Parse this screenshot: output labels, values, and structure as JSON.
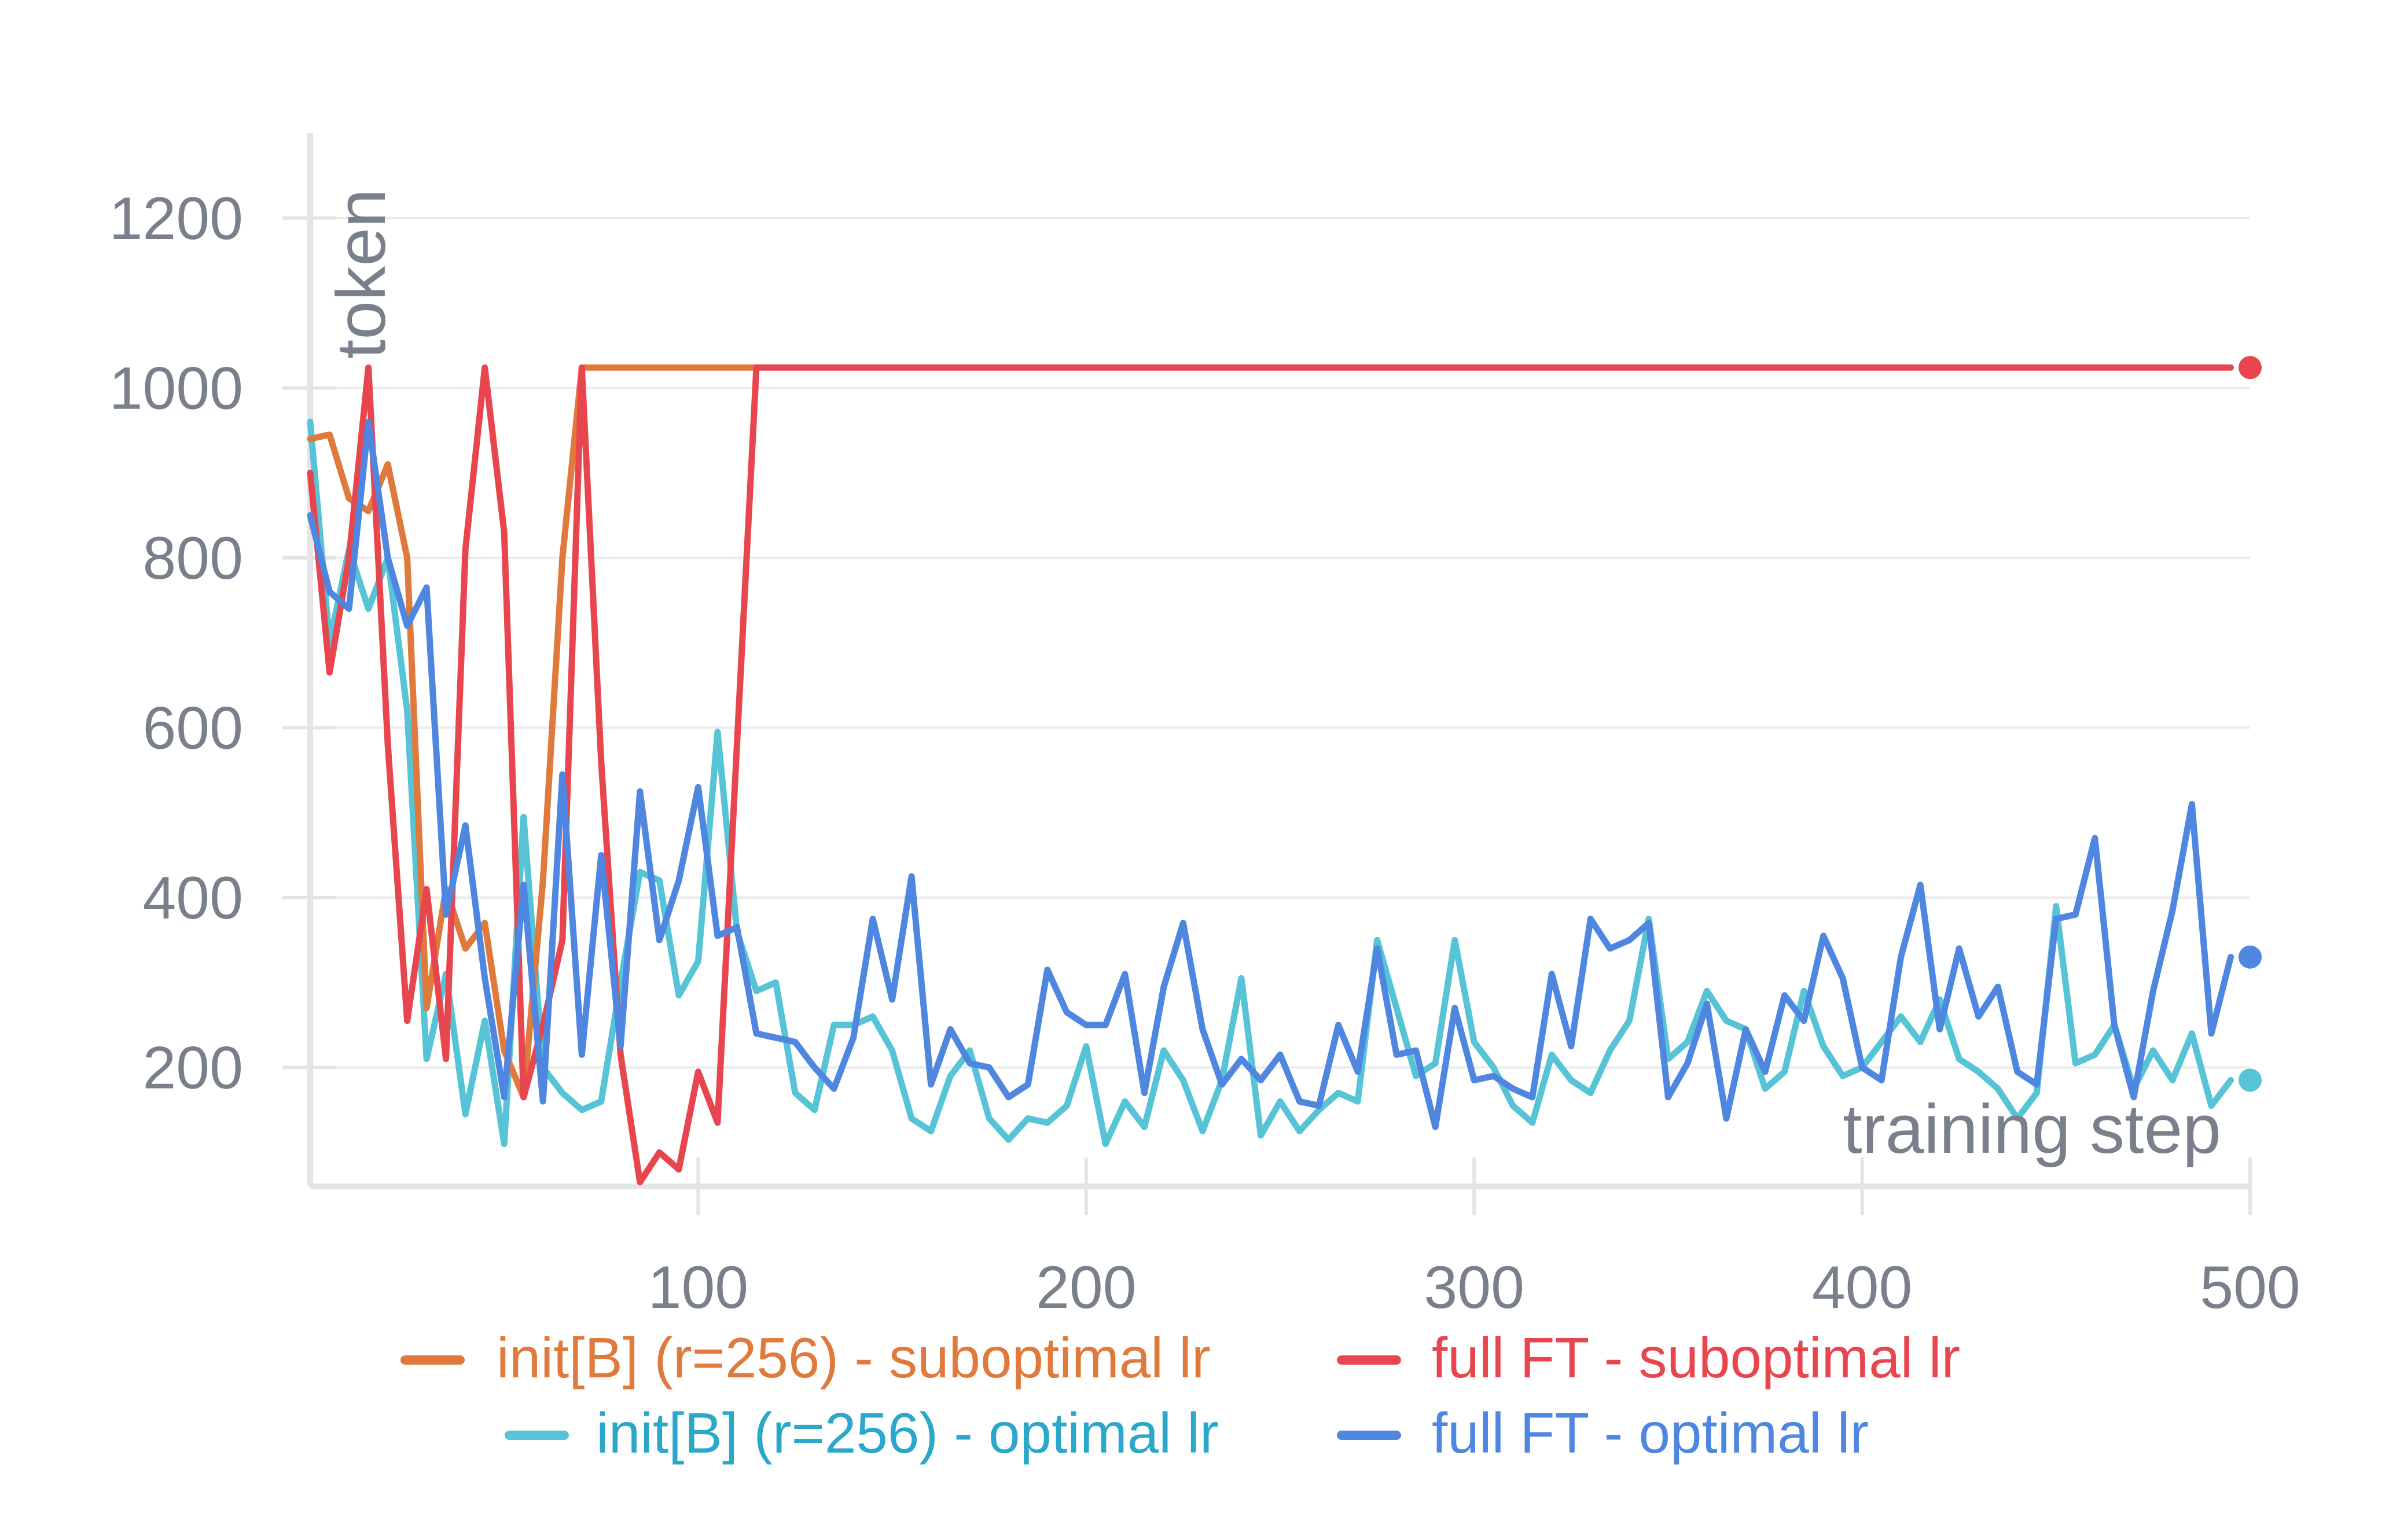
{
  "chart_data": {
    "type": "line",
    "title": "",
    "xlabel": "training step",
    "ylabel": "token",
    "xlim": [
      0,
      500
    ],
    "ylim": [
      60,
      1300
    ],
    "x_ticks": [
      100,
      200,
      300,
      400,
      500
    ],
    "y_ticks": [
      200,
      400,
      600,
      800,
      1000,
      1200
    ],
    "grid": true,
    "legend_position": "bottom",
    "series": [
      {
        "name": "init[B] (r=256) - optimal lr",
        "color": "#56c3d6",
        "values": [
          [
            0,
            960
          ],
          [
            5,
            700
          ],
          [
            10,
            810
          ],
          [
            15,
            740
          ],
          [
            20,
            800
          ],
          [
            25,
            620
          ],
          [
            30,
            210
          ],
          [
            35,
            310
          ],
          [
            40,
            145
          ],
          [
            45,
            255
          ],
          [
            50,
            110
          ],
          [
            55,
            495
          ],
          [
            60,
            200
          ],
          [
            65,
            170
          ],
          [
            70,
            150
          ],
          [
            75,
            160
          ],
          [
            80,
            300
          ],
          [
            85,
            430
          ],
          [
            90,
            420
          ],
          [
            95,
            285
          ],
          [
            100,
            325
          ],
          [
            105,
            595
          ],
          [
            110,
            360
          ],
          [
            115,
            290
          ],
          [
            120,
            300
          ],
          [
            125,
            170
          ],
          [
            130,
            150
          ],
          [
            135,
            250
          ],
          [
            140,
            250
          ],
          [
            145,
            260
          ],
          [
            150,
            220
          ],
          [
            155,
            140
          ],
          [
            160,
            125
          ],
          [
            165,
            190
          ],
          [
            170,
            220
          ],
          [
            175,
            140
          ],
          [
            180,
            115
          ],
          [
            185,
            140
          ],
          [
            190,
            135
          ],
          [
            195,
            155
          ],
          [
            200,
            225
          ],
          [
            205,
            110
          ],
          [
            210,
            160
          ],
          [
            215,
            130
          ],
          [
            220,
            220
          ],
          [
            225,
            185
          ],
          [
            230,
            125
          ],
          [
            235,
            185
          ],
          [
            240,
            305
          ],
          [
            245,
            120
          ],
          [
            250,
            160
          ],
          [
            255,
            125
          ],
          [
            260,
            150
          ],
          [
            265,
            170
          ],
          [
            270,
            160
          ],
          [
            275,
            350
          ],
          [
            280,
            270
          ],
          [
            285,
            190
          ],
          [
            290,
            205
          ],
          [
            295,
            350
          ],
          [
            300,
            230
          ],
          [
            305,
            200
          ],
          [
            310,
            155
          ],
          [
            315,
            135
          ],
          [
            320,
            215
          ],
          [
            325,
            185
          ],
          [
            330,
            170
          ],
          [
            335,
            220
          ],
          [
            340,
            255
          ],
          [
            345,
            375
          ],
          [
            350,
            210
          ],
          [
            355,
            230
          ],
          [
            360,
            290
          ],
          [
            365,
            255
          ],
          [
            370,
            245
          ],
          [
            375,
            175
          ],
          [
            380,
            195
          ],
          [
            385,
            290
          ],
          [
            390,
            225
          ],
          [
            395,
            190
          ],
          [
            400,
            200
          ],
          [
            405,
            230
          ],
          [
            410,
            260
          ],
          [
            415,
            230
          ],
          [
            420,
            280
          ],
          [
            425,
            210
          ],
          [
            430,
            195
          ],
          [
            435,
            175
          ],
          [
            440,
            140
          ],
          [
            445,
            170
          ],
          [
            450,
            390
          ],
          [
            455,
            205
          ],
          [
            460,
            215
          ],
          [
            465,
            250
          ],
          [
            470,
            175
          ],
          [
            475,
            220
          ],
          [
            480,
            185
          ],
          [
            485,
            240
          ],
          [
            490,
            155
          ],
          [
            495,
            185
          ]
        ]
      },
      {
        "name": "init[B] (r=256) - suboptimal lr",
        "color": "#e07a3c",
        "values": [
          [
            0,
            940
          ],
          [
            5,
            945
          ],
          [
            10,
            870
          ],
          [
            15,
            855
          ],
          [
            20,
            910
          ],
          [
            25,
            800
          ],
          [
            30,
            270
          ],
          [
            35,
            410
          ],
          [
            40,
            340
          ],
          [
            45,
            370
          ],
          [
            50,
            220
          ],
          [
            55,
            165
          ],
          [
            60,
            420
          ],
          [
            65,
            800
          ],
          [
            70,
            1024
          ],
          [
            75,
            1024
          ],
          [
            80,
            1024
          ],
          [
            90,
            1024
          ],
          [
            100,
            1024
          ],
          [
            110,
            1024
          ],
          [
            115,
            1024
          ]
        ]
      },
      {
        "name": "full FT - suboptimal lr",
        "color": "#e8464f",
        "values": [
          [
            0,
            900
          ],
          [
            5,
            665
          ],
          [
            10,
            800
          ],
          [
            15,
            1024
          ],
          [
            20,
            580
          ],
          [
            25,
            255
          ],
          [
            30,
            410
          ],
          [
            35,
            210
          ],
          [
            40,
            810
          ],
          [
            45,
            1024
          ],
          [
            50,
            830
          ],
          [
            55,
            165
          ],
          [
            60,
            250
          ],
          [
            65,
            350
          ],
          [
            70,
            1024
          ],
          [
            75,
            560
          ],
          [
            80,
            215
          ],
          [
            85,
            65
          ],
          [
            90,
            100
          ],
          [
            95,
            80
          ],
          [
            100,
            195
          ],
          [
            105,
            135
          ],
          [
            110,
            580
          ],
          [
            115,
            1024
          ],
          [
            120,
            1024
          ],
          [
            200,
            1024
          ],
          [
            300,
            1024
          ],
          [
            400,
            1024
          ],
          [
            495,
            1024
          ]
        ]
      },
      {
        "name": "full FT - optimal lr",
        "color": "#4f86e0",
        "values": [
          [
            0,
            850
          ],
          [
            5,
            760
          ],
          [
            10,
            740
          ],
          [
            15,
            960
          ],
          [
            20,
            800
          ],
          [
            25,
            720
          ],
          [
            30,
            765
          ],
          [
            35,
            380
          ],
          [
            40,
            485
          ],
          [
            45,
            305
          ],
          [
            50,
            165
          ],
          [
            55,
            415
          ],
          [
            60,
            160
          ],
          [
            65,
            545
          ],
          [
            70,
            215
          ],
          [
            75,
            450
          ],
          [
            80,
            225
          ],
          [
            85,
            525
          ],
          [
            90,
            350
          ],
          [
            95,
            420
          ],
          [
            100,
            530
          ],
          [
            105,
            355
          ],
          [
            110,
            365
          ],
          [
            115,
            240
          ],
          [
            120,
            235
          ],
          [
            125,
            230
          ],
          [
            130,
            200
          ],
          [
            135,
            175
          ],
          [
            140,
            235
          ],
          [
            145,
            375
          ],
          [
            150,
            280
          ],
          [
            155,
            425
          ],
          [
            160,
            180
          ],
          [
            165,
            245
          ],
          [
            170,
            205
          ],
          [
            175,
            200
          ],
          [
            180,
            165
          ],
          [
            185,
            180
          ],
          [
            190,
            315
          ],
          [
            195,
            265
          ],
          [
            200,
            250
          ],
          [
            205,
            250
          ],
          [
            210,
            310
          ],
          [
            215,
            170
          ],
          [
            220,
            295
          ],
          [
            225,
            370
          ],
          [
            230,
            245
          ],
          [
            235,
            180
          ],
          [
            240,
            210
          ],
          [
            245,
            185
          ],
          [
            250,
            215
          ],
          [
            255,
            160
          ],
          [
            260,
            155
          ],
          [
            265,
            250
          ],
          [
            270,
            195
          ],
          [
            275,
            340
          ],
          [
            280,
            215
          ],
          [
            285,
            220
          ],
          [
            290,
            130
          ],
          [
            295,
            270
          ],
          [
            300,
            185
          ],
          [
            305,
            190
          ],
          [
            310,
            175
          ],
          [
            315,
            165
          ],
          [
            320,
            310
          ],
          [
            325,
            225
          ],
          [
            330,
            375
          ],
          [
            335,
            340
          ],
          [
            340,
            350
          ],
          [
            345,
            370
          ],
          [
            350,
            165
          ],
          [
            355,
            205
          ],
          [
            360,
            275
          ],
          [
            365,
            140
          ],
          [
            370,
            245
          ],
          [
            375,
            195
          ],
          [
            380,
            285
          ],
          [
            385,
            255
          ],
          [
            390,
            355
          ],
          [
            395,
            305
          ],
          [
            400,
            200
          ],
          [
            405,
            185
          ],
          [
            410,
            330
          ],
          [
            415,
            415
          ],
          [
            420,
            245
          ],
          [
            425,
            340
          ],
          [
            430,
            260
          ],
          [
            435,
            295
          ],
          [
            440,
            195
          ],
          [
            445,
            180
          ],
          [
            450,
            375
          ],
          [
            455,
            380
          ],
          [
            460,
            470
          ],
          [
            465,
            250
          ],
          [
            470,
            165
          ],
          [
            475,
            290
          ],
          [
            480,
            385
          ],
          [
            485,
            510
          ],
          [
            490,
            240
          ],
          [
            495,
            330
          ]
        ]
      }
    ]
  },
  "legend": {
    "row1": [
      {
        "label": "init[B] (r=256) - suboptimal lr",
        "color": "#e07a3c"
      },
      {
        "label": "full FT - suboptimal lr",
        "color": "#e8464f"
      }
    ],
    "row2": [
      {
        "label": "init[B] (r=256) - optimal lr",
        "color": "#56c3d6",
        "text_color": "#2aa7c9"
      },
      {
        "label": "full FT - optimal lr",
        "color": "#4f86e0"
      }
    ]
  }
}
